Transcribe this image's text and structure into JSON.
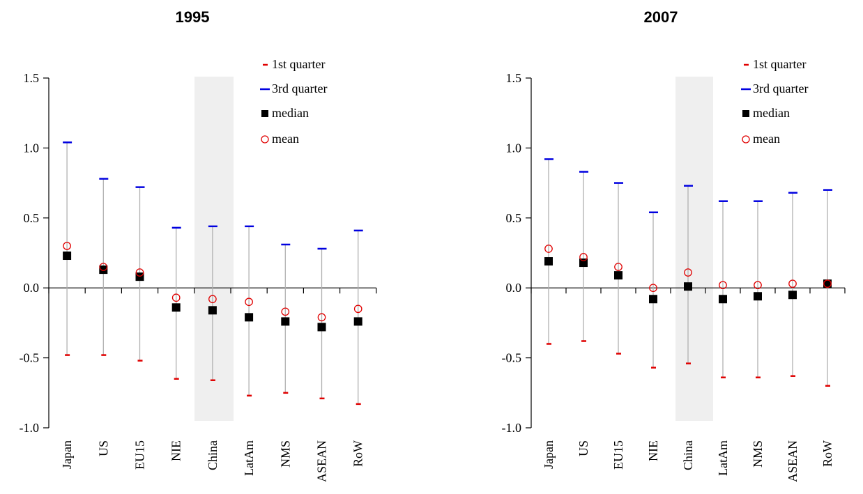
{
  "chart_data": [
    {
      "type": "scatter",
      "title": "1995",
      "categories": [
        "Japan",
        "US",
        "EU15",
        "NIE",
        "China",
        "LatAm",
        "NMS",
        "ASEAN",
        "RoW"
      ],
      "highlight_category": "China",
      "ylim": [
        -1.0,
        1.5
      ],
      "yticks": [
        "-1.0",
        "-0.5",
        "0.0",
        "0.5",
        "1.0",
        "1.5"
      ],
      "ytick_values": [
        -1.0,
        -0.5,
        0.0,
        0.5,
        1.0,
        1.5
      ],
      "series": [
        {
          "name": "1st quarter",
          "values": [
            -0.48,
            -0.48,
            -0.52,
            -0.65,
            -0.66,
            -0.77,
            -0.75,
            -0.79,
            -0.83
          ]
        },
        {
          "name": "3rd quarter",
          "values": [
            1.04,
            0.78,
            0.72,
            0.43,
            0.44,
            0.44,
            0.31,
            0.28,
            0.41
          ]
        },
        {
          "name": "median",
          "values": [
            0.23,
            0.13,
            0.08,
            -0.14,
            -0.16,
            -0.21,
            -0.24,
            -0.28,
            -0.24
          ]
        },
        {
          "name": "mean",
          "values": [
            0.3,
            0.15,
            0.11,
            -0.07,
            -0.08,
            -0.1,
            -0.17,
            -0.21,
            -0.15
          ]
        }
      ]
    },
    {
      "type": "scatter",
      "title": "2007",
      "categories": [
        "Japan",
        "US",
        "EU15",
        "NIE",
        "China",
        "LatAm",
        "NMS",
        "ASEAN",
        "RoW"
      ],
      "highlight_category": "China",
      "ylim": [
        -1.0,
        1.5
      ],
      "yticks": [
        "-1.0",
        "-0.5",
        "0.0",
        "0.5",
        "1.0",
        "1.5"
      ],
      "ytick_values": [
        -1.0,
        -0.5,
        0.0,
        0.5,
        1.0,
        1.5
      ],
      "series": [
        {
          "name": "1st quarter",
          "values": [
            -0.4,
            -0.38,
            -0.47,
            -0.57,
            -0.54,
            -0.64,
            -0.64,
            -0.63,
            -0.7
          ]
        },
        {
          "name": "3rd quarter",
          "values": [
            0.92,
            0.83,
            0.75,
            0.54,
            0.73,
            0.62,
            0.62,
            0.68,
            0.7
          ]
        },
        {
          "name": "median",
          "values": [
            0.19,
            0.18,
            0.09,
            -0.08,
            0.01,
            -0.08,
            -0.06,
            -0.05,
            0.03
          ]
        },
        {
          "name": "mean",
          "values": [
            0.28,
            0.22,
            0.15,
            0.0,
            0.11,
            0.02,
            0.02,
            0.03,
            0.03
          ]
        }
      ]
    }
  ],
  "colors": {
    "first_quarter": "#e00000",
    "third_quarter": "#0000e0",
    "median": "#000000",
    "mean": "#e00000",
    "whisker": "#b0b0b0",
    "highlight": "#efefef"
  }
}
